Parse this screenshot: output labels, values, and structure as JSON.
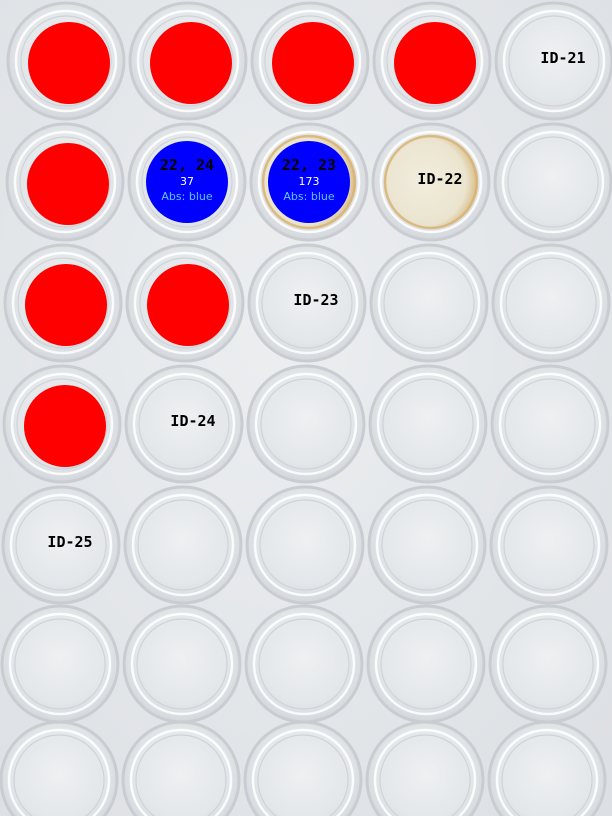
{
  "colors": {
    "marker_red": "#ff0000",
    "marker_blue": "#0000ff",
    "well_stain": "#d8b06a",
    "plate_bg": "#e6e9ec"
  },
  "red_markers": [
    {
      "row": 0,
      "col": 0
    },
    {
      "row": 0,
      "col": 1
    },
    {
      "row": 0,
      "col": 2
    },
    {
      "row": 0,
      "col": 3
    },
    {
      "row": 1,
      "col": 0
    },
    {
      "row": 2,
      "col": 0
    },
    {
      "row": 2,
      "col": 1
    },
    {
      "row": 3,
      "col": 0
    }
  ],
  "hits": [
    {
      "row": 1,
      "col": 1,
      "ids": "22, 24",
      "value": "37",
      "abs": "Abs: blue"
    },
    {
      "row": 1,
      "col": 2,
      "ids": "22, 23",
      "value": "173",
      "abs": "Abs: blue"
    }
  ],
  "id_labels": [
    {
      "row": 0,
      "col": 4,
      "text": "ID-21"
    },
    {
      "row": 1,
      "col": 3,
      "text": "ID-22"
    },
    {
      "row": 2,
      "col": 2,
      "text": "ID-23"
    },
    {
      "row": 3,
      "col": 1,
      "text": "ID-24"
    },
    {
      "row": 4,
      "col": 0,
      "text": "ID-25"
    }
  ],
  "stained_wells": [
    {
      "row": 1,
      "col": 2
    },
    {
      "row": 1,
      "col": 3
    }
  ]
}
